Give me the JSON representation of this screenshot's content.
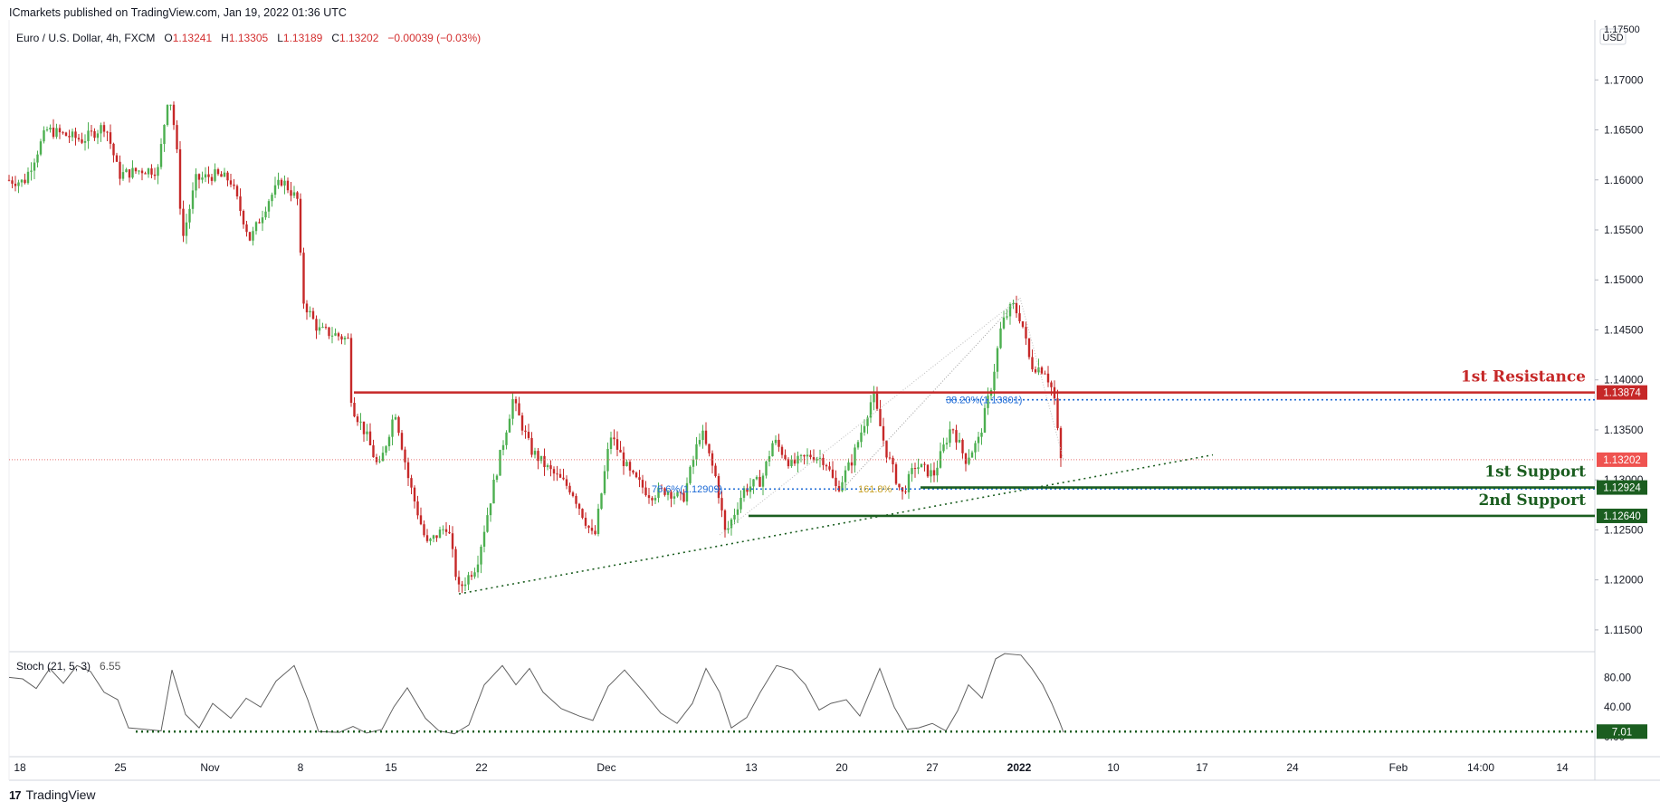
{
  "header": {
    "published": "ICmarkets published on TradingView.com, Jan 19, 2022 01:36 UTC"
  },
  "symbol": {
    "name": "Euro / U.S. Dollar, 4h, FXCM",
    "o_label": "O",
    "o_value": "1.13241",
    "h_label": "H",
    "h_value": "1.13305",
    "l_label": "L",
    "l_value": "1.13189",
    "c_label": "C",
    "c_value": "1.13202",
    "change": "−0.00039 (−0.03%)"
  },
  "currency": "USD",
  "indicator": {
    "name": "Stoch (21, 5, 3)",
    "value": "6.55",
    "level_label": "7.01"
  },
  "footer": {
    "brand": "TradingView"
  },
  "colors": {
    "up": "#26a69a",
    "up_body": "#4caf50",
    "down": "#c62828",
    "resistance": "#c62828",
    "support": "#1b5e20",
    "fib": "#1e6bd6",
    "grid": "#e0e3eb"
  },
  "chart_data": {
    "type": "candlestick",
    "instrument": "EURUSD",
    "timeframe": "4h",
    "ylim": [
      1.113,
      1.176
    ],
    "y_ticks": [
      "1.17000",
      "1.16500",
      "1.16000",
      "1.15500",
      "1.15000",
      "1.14500",
      "1.14000",
      "1.13500",
      "1.13000",
      "1.12500",
      "1.12000",
      "1.11500"
    ],
    "x_ticks": [
      "18",
      "25",
      "Nov",
      "8",
      "15",
      "22",
      "Dec",
      "13",
      "20",
      "27",
      "2022",
      "10",
      "17",
      "24",
      "Feb",
      "14:00",
      "14"
    ],
    "top_partial_tick": "1.17500",
    "price_path": [
      [
        0,
        1.16
      ],
      [
        20,
        1.1598
      ],
      [
        45,
        1.165
      ],
      [
        85,
        1.164
      ],
      [
        110,
        1.1655
      ],
      [
        125,
        1.1605
      ],
      [
        150,
        1.161
      ],
      [
        168,
        1.161
      ],
      [
        180,
        1.169
      ],
      [
        188,
        1.164
      ],
      [
        195,
        1.154
      ],
      [
        210,
        1.16
      ],
      [
        230,
        1.1605
      ],
      [
        248,
        1.16
      ],
      [
        270,
        1.154
      ],
      [
        290,
        1.158
      ],
      [
        305,
        1.16
      ],
      [
        322,
        1.158
      ],
      [
        328,
        1.148
      ],
      [
        345,
        1.145
      ],
      [
        365,
        1.1445
      ],
      [
        378,
        1.144
      ],
      [
        382,
        1.1375
      ],
      [
        398,
        1.1345
      ],
      [
        412,
        1.131
      ],
      [
        430,
        1.137
      ],
      [
        445,
        1.13
      ],
      [
        465,
        1.1235
      ],
      [
        488,
        1.1255
      ],
      [
        500,
        1.119
      ],
      [
        520,
        1.1215
      ],
      [
        540,
        1.13
      ],
      [
        560,
        1.138
      ],
      [
        580,
        1.133
      ],
      [
        600,
        1.131
      ],
      [
        625,
        1.129
      ],
      [
        650,
        1.124
      ],
      [
        668,
        1.1345
      ],
      [
        690,
        1.1305
      ],
      [
        712,
        1.1285
      ],
      [
        730,
        1.129
      ],
      [
        748,
        1.128
      ],
      [
        768,
        1.135
      ],
      [
        785,
        1.13
      ],
      [
        795,
        1.1245
      ],
      [
        815,
        1.129
      ],
      [
        835,
        1.13
      ],
      [
        848,
        1.134
      ],
      [
        868,
        1.1315
      ],
      [
        890,
        1.1325
      ],
      [
        905,
        1.132
      ],
      [
        918,
        1.129
      ],
      [
        935,
        1.132
      ],
      [
        958,
        1.1385
      ],
      [
        972,
        1.133
      ],
      [
        990,
        1.1285
      ],
      [
        1005,
        1.1315
      ],
      [
        1025,
        1.1305
      ],
      [
        1045,
        1.1355
      ],
      [
        1060,
        1.132
      ],
      [
        1075,
        1.134
      ],
      [
        1090,
        1.14
      ],
      [
        1100,
        1.1455
      ],
      [
        1112,
        1.1475
      ],
      [
        1122,
        1.146
      ],
      [
        1132,
        1.1415
      ],
      [
        1148,
        1.141
      ],
      [
        1158,
        1.1385
      ],
      [
        1165,
        1.132
      ]
    ],
    "stoch_path": [
      [
        0,
        80
      ],
      [
        15,
        78
      ],
      [
        30,
        65
      ],
      [
        45,
        92
      ],
      [
        60,
        72
      ],
      [
        75,
        96
      ],
      [
        90,
        88
      ],
      [
        105,
        60
      ],
      [
        120,
        50
      ],
      [
        132,
        12
      ],
      [
        150,
        10
      ],
      [
        168,
        8
      ],
      [
        180,
        90
      ],
      [
        195,
        30
      ],
      [
        210,
        12
      ],
      [
        225,
        45
      ],
      [
        245,
        25
      ],
      [
        262,
        52
      ],
      [
        278,
        40
      ],
      [
        295,
        75
      ],
      [
        315,
        96
      ],
      [
        330,
        50
      ],
      [
        342,
        7
      ],
      [
        365,
        6
      ],
      [
        380,
        14
      ],
      [
        395,
        5
      ],
      [
        412,
        10
      ],
      [
        425,
        40
      ],
      [
        440,
        66
      ],
      [
        460,
        25
      ],
      [
        475,
        8
      ],
      [
        492,
        4
      ],
      [
        508,
        16
      ],
      [
        525,
        70
      ],
      [
        545,
        96
      ],
      [
        560,
        70
      ],
      [
        575,
        92
      ],
      [
        590,
        60
      ],
      [
        610,
        38
      ],
      [
        630,
        28
      ],
      [
        645,
        22
      ],
      [
        662,
        68
      ],
      [
        680,
        90
      ],
      [
        700,
        62
      ],
      [
        720,
        32
      ],
      [
        738,
        18
      ],
      [
        755,
        45
      ],
      [
        770,
        92
      ],
      [
        785,
        60
      ],
      [
        798,
        12
      ],
      [
        815,
        26
      ],
      [
        830,
        60
      ],
      [
        848,
        96
      ],
      [
        865,
        90
      ],
      [
        880,
        70
      ],
      [
        895,
        36
      ],
      [
        908,
        45
      ],
      [
        925,
        50
      ],
      [
        940,
        28
      ],
      [
        962,
        92
      ],
      [
        978,
        40
      ],
      [
        992,
        10
      ],
      [
        1005,
        12
      ],
      [
        1020,
        18
      ],
      [
        1035,
        8
      ],
      [
        1048,
        35
      ],
      [
        1060,
        70
      ],
      [
        1075,
        52
      ],
      [
        1090,
        105
      ],
      [
        1100,
        112
      ],
      [
        1118,
        110
      ],
      [
        1130,
        92
      ],
      [
        1142,
        70
      ],
      [
        1152,
        45
      ],
      [
        1160,
        22
      ],
      [
        1165,
        6
      ]
    ],
    "stoch_ticks": [
      "80.00",
      "40.00",
      "0.00"
    ],
    "levels": [
      {
        "name": "1st Resistance",
        "price": 1.13874,
        "label": "1.13874",
        "kind": "resistance",
        "x_start": 381
      },
      {
        "name": "1st Support",
        "price": 1.12924,
        "label": "1.12924",
        "kind": "support",
        "x_start": 1007
      },
      {
        "name": "2nd Support",
        "price": 1.1264,
        "label": "1.12640",
        "kind": "support",
        "x_start": 817
      }
    ],
    "current_price": {
      "price": 1.13202,
      "label": "1.13202"
    },
    "fib_labels": [
      {
        "text": "38.20%(1.13801)",
        "price": 1.13801,
        "x": 1045
      },
      {
        "text": "78.6%(1.12909)",
        "price": 1.12909,
        "x": 720
      },
      {
        "text": "161.8%",
        "price": 1.12909,
        "x": 948
      }
    ],
    "trendline": {
      "from": [
        497,
        1.1186
      ],
      "to": [
        1330,
        1.1325
      ]
    }
  }
}
